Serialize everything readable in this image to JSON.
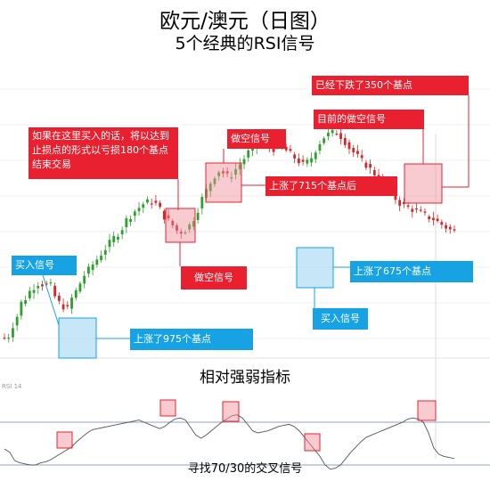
{
  "title": "欧元/澳元（日图）",
  "subtitle": "5个经典的RSI信号",
  "indicator_title": "相对强弱指标",
  "indicator_name": "RSI 14",
  "footer": "寻找70/30的交叉信号",
  "annotations": {
    "sell_3_drop": "已经下跌了350个基点",
    "sell_current": "目前的做空信号",
    "loss_note": "如果在这里买入的话，将以达到止损点的形式以亏损180个基点结束交易",
    "sell_2": "做空信号",
    "rise_715": "上涨了715个基点后",
    "buy_1": "买入信号",
    "sell_1": "做空信号",
    "rise_675": "上涨了675个基点",
    "buy_2": "买入信号",
    "rise_975": "上涨了975个基点"
  },
  "colors": {
    "up": "#2ca02c",
    "down": "#d62728",
    "sell": "#e8202f",
    "buy": "#17a3e3",
    "rsi_line": "#555555",
    "rsi_bound": "#8aa4c8"
  },
  "chart_data": [
    {
      "type": "candlestick",
      "title": "欧元/澳元（日图）",
      "subtitle": "5个经典的RSI信号",
      "close_profile": [
        16,
        18,
        30,
        40,
        55,
        60,
        68,
        73,
        77,
        76,
        75,
        74,
        62,
        55,
        51,
        48,
        60,
        68,
        77,
        86,
        92,
        98,
        104,
        110,
        116,
        122,
        128,
        133,
        139,
        148,
        153,
        158,
        162,
        166,
        168,
        169,
        166,
        160,
        152,
        147,
        142,
        136,
        135,
        137,
        142,
        150,
        160,
        172,
        181,
        190,
        198,
        203,
        201,
        197,
        199,
        205,
        211,
        217,
        224,
        229,
        234,
        235,
        232,
        230,
        228,
        229,
        230,
        226,
        222,
        218,
        214,
        210,
        213,
        218,
        227,
        235,
        241,
        244,
        246,
        247,
        242,
        236,
        229,
        224,
        219,
        214,
        210,
        205,
        200,
        193,
        186,
        180,
        176,
        172,
        167,
        164,
        162,
        160,
        158,
        156,
        153,
        151,
        149,
        146,
        143,
        140,
        137,
        135
      ],
      "signals": [
        {
          "kind": "buy",
          "label": "买入信号",
          "move": "上涨了975个基点"
        },
        {
          "kind": "sell",
          "label": "做空信号",
          "note": "如果在这里买入的话，将以达到止损点的形式以亏损180个基点结束交易"
        },
        {
          "kind": "sell",
          "label": "做空信号",
          "move": "上涨了715个基点后"
        },
        {
          "kind": "buy",
          "label": "买入信号",
          "move": "上涨了675个基点"
        },
        {
          "kind": "sell",
          "label": "目前的做空信号",
          "move": "已经下跌了350个基点"
        }
      ]
    },
    {
      "type": "line",
      "title": "相对强弱指标",
      "series": [
        {
          "name": "RSI 14"
        }
      ],
      "levels": [
        70,
        30
      ],
      "values": [
        45,
        42,
        34,
        32,
        31,
        30,
        30,
        32,
        33,
        35,
        38,
        41,
        44,
        47,
        52,
        56,
        60,
        63,
        64,
        65,
        66,
        67,
        68,
        69,
        70,
        71,
        72,
        70,
        68,
        66,
        64,
        66,
        70,
        73,
        74,
        72,
        65,
        58,
        55,
        58,
        62,
        66,
        70,
        73,
        76,
        77,
        74,
        68,
        62,
        60,
        61,
        62,
        64,
        66,
        67,
        68,
        66,
        62,
        56,
        50,
        44,
        38,
        30,
        26,
        27,
        30,
        36,
        42,
        47,
        52,
        56,
        58,
        60,
        62,
        64,
        66,
        68,
        70,
        73,
        74,
        73,
        70,
        60,
        46,
        40,
        38,
        37,
        36
      ]
    }
  ]
}
